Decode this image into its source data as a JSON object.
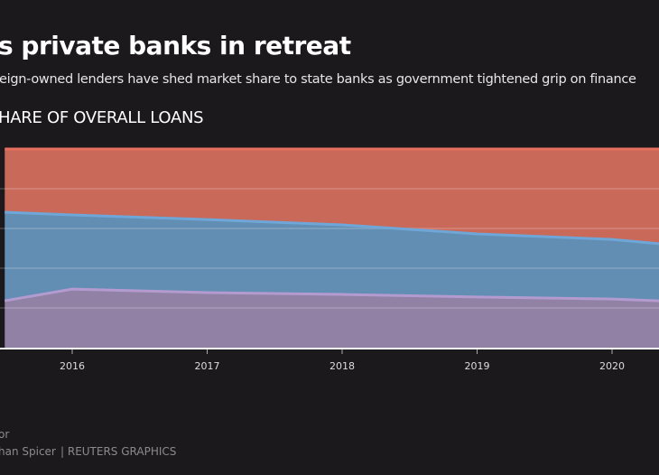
{
  "header": {
    "title": "s private banks in retreat",
    "subtitle": "eign-owned lenders have shed market share to state banks as government tightened grip on finance",
    "chart_label": "HARE OF OVERALL LOANS"
  },
  "footer": {
    "line1": "or",
    "line2": "han Spicer",
    "credit": "| REUTERS GRAPHICS"
  },
  "colors": {
    "background": "#1b191c",
    "bottom_fill": "#9181a5",
    "bottom_line": "#b39bd0",
    "middle_fill": "#628eb3",
    "middle_line": "#6fa6d8",
    "top_fill": "#c8695a",
    "top_line": "#e8705f"
  },
  "chart_data": {
    "type": "area",
    "stacked": true,
    "x": [
      2015.5,
      2016,
      2017,
      2018,
      2019,
      2020,
      2020.35
    ],
    "xticks": [
      "2016",
      "2017",
      "2018",
      "2019",
      "2020"
    ],
    "ylim": [
      0,
      100
    ],
    "grid": true,
    "series": [
      {
        "values": [
          23.6,
          29.5,
          27.7,
          26.8,
          25.5,
          24.5,
          23.6
        ]
      },
      {
        "values": [
          44.6,
          37.3,
          36.8,
          35.0,
          31.8,
          30.0,
          28.7
        ]
      },
      {
        "values": [
          31.8,
          33.2,
          35.5,
          38.2,
          42.7,
          45.5,
          47.7
        ]
      }
    ]
  }
}
